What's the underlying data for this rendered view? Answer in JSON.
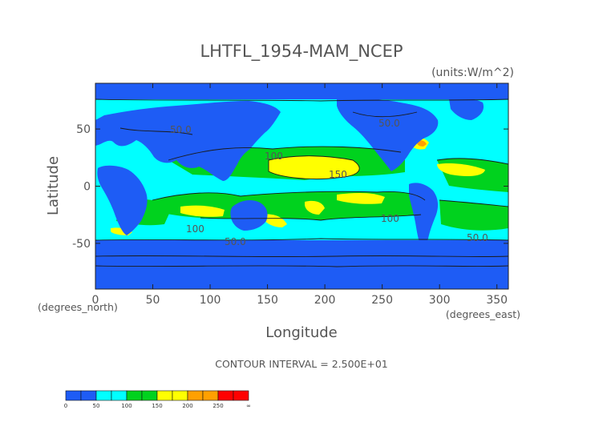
{
  "chart_data": {
    "type": "heatmap",
    "title": "LHTFL_1954-MAM_NCEP",
    "units": "(units:W/m^2)",
    "xlabel": "Longitude",
    "ylabel": "Latitude",
    "x_unit_label": "(degrees_east)",
    "y_unit_label": "(degrees_north)",
    "xlim": [
      0,
      360
    ],
    "ylim": [
      -90,
      90
    ],
    "x_ticks": [
      "0",
      "50",
      "100",
      "150",
      "200",
      "250",
      "300",
      "350"
    ],
    "y_ticks": [
      "50",
      "0",
      "-50"
    ],
    "x_tick_values": [
      0,
      50,
      100,
      150,
      200,
      250,
      300,
      350
    ],
    "y_tick_values": [
      50,
      0,
      -50
    ],
    "contour_interval": "CONTOUR INTERVAL = 2.500E+01",
    "contour_labels": [
      "50.0",
      "100",
      "150",
      "100",
      "50.0",
      "100",
      "50.0",
      "50.0"
    ],
    "colorbar": {
      "tick_labels": [
        "0",
        "50",
        "100",
        "150",
        "200",
        "250",
        "∞"
      ],
      "bins": [
        {
          "from": 0,
          "to": 25,
          "color": "#1e5cf5"
        },
        {
          "from": 25,
          "to": 50,
          "color": "#1e5cf5"
        },
        {
          "from": 50,
          "to": 75,
          "color": "#00ffff"
        },
        {
          "from": 75,
          "to": 100,
          "color": "#00ffff"
        },
        {
          "from": 100,
          "to": 125,
          "color": "#00d21e"
        },
        {
          "from": 125,
          "to": 150,
          "color": "#00d21e"
        },
        {
          "from": 150,
          "to": 175,
          "color": "#ffff00"
        },
        {
          "from": 175,
          "to": 200,
          "color": "#ffff00"
        },
        {
          "from": 200,
          "to": 225,
          "color": "#ffa000"
        },
        {
          "from": 225,
          "to": 250,
          "color": "#ffa000"
        },
        {
          "from": 250,
          "to": 275,
          "color": "#ff0000"
        },
        {
          "from": 275,
          "to": 300,
          "color": "#ff0000"
        }
      ]
    }
  }
}
